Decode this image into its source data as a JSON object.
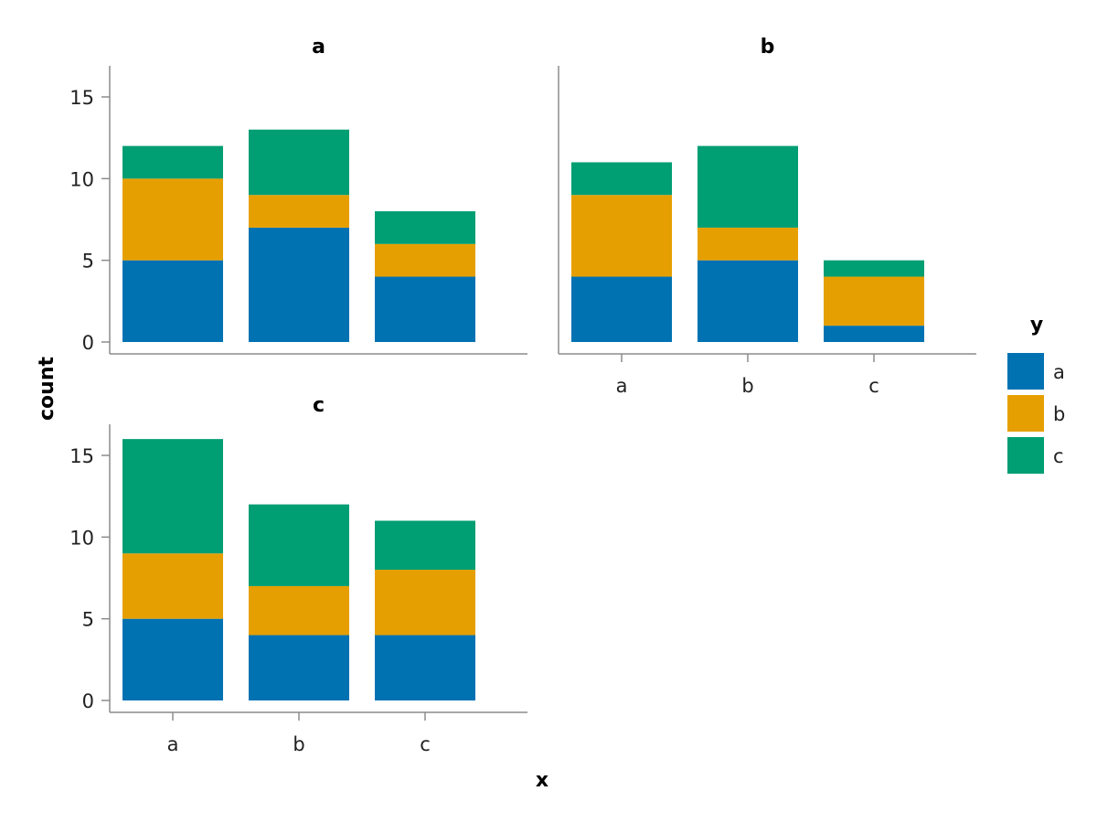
{
  "chart_data": {
    "type": "bar",
    "stacked": true,
    "categories": [
      "a",
      "b",
      "c"
    ],
    "ylabel": "count",
    "xlabel": "x",
    "ylim": [
      0,
      17
    ],
    "yticks": [
      0,
      5,
      10,
      15
    ],
    "legend": {
      "title": "y",
      "placement": "right",
      "entries": [
        {
          "name": "a",
          "color": "#0072B2"
        },
        {
          "name": "b",
          "color": "#E69F00"
        },
        {
          "name": "c",
          "color": "#009E73"
        }
      ]
    },
    "facets": [
      {
        "title": "a",
        "series": [
          {
            "name": "a",
            "values": [
              5,
              7,
              4
            ]
          },
          {
            "name": "b",
            "values": [
              5,
              2,
              2
            ]
          },
          {
            "name": "c",
            "values": [
              2,
              4,
              2
            ]
          }
        ]
      },
      {
        "title": "b",
        "series": [
          {
            "name": "a",
            "values": [
              4,
              5,
              1
            ]
          },
          {
            "name": "b",
            "values": [
              5,
              2,
              3
            ]
          },
          {
            "name": "c",
            "values": [
              2,
              5,
              1
            ]
          }
        ]
      },
      {
        "title": "c",
        "series": [
          {
            "name": "a",
            "values": [
              5,
              4,
              4
            ]
          },
          {
            "name": "b",
            "values": [
              4,
              3,
              4
            ]
          },
          {
            "name": "c",
            "values": [
              7,
              5,
              3
            ]
          }
        ]
      }
    ]
  }
}
